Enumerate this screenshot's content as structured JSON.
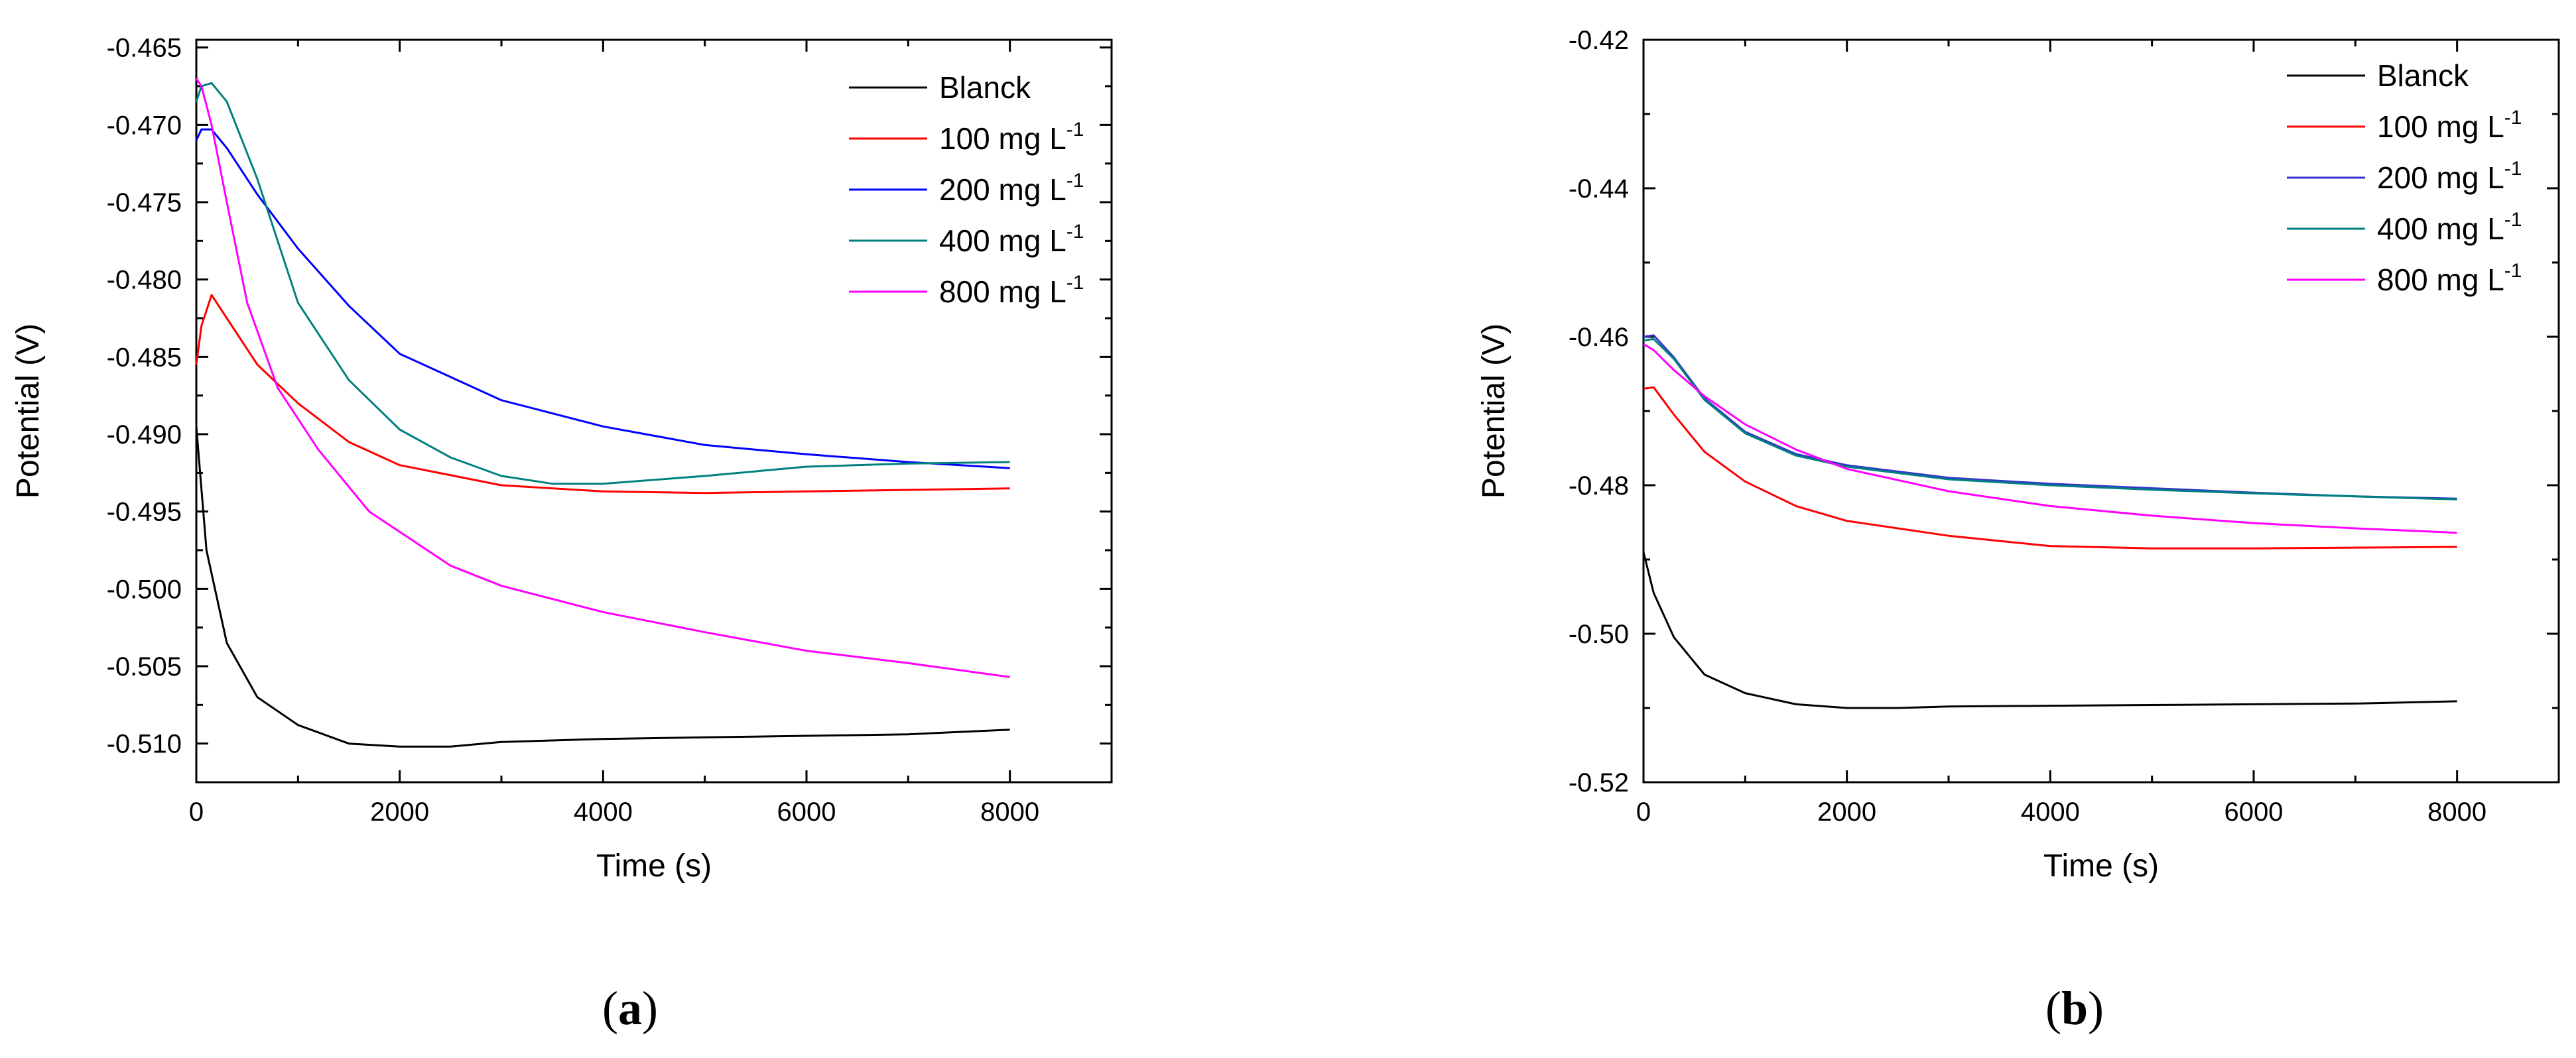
{
  "figure": {
    "panels": [
      {
        "label_open": "(",
        "label_letter": "a",
        "label_close": ")"
      },
      {
        "label_open": "(",
        "label_letter": "b",
        "label_close": ")"
      }
    ]
  },
  "chart_data": [
    {
      "type": "line",
      "xlabel": "Time (s)",
      "ylabel": "Potential (V)",
      "xlim": [
        0,
        9000
      ],
      "ylim": [
        -0.5125,
        -0.4645
      ],
      "xticks": [
        0,
        2000,
        4000,
        6000,
        8000
      ],
      "xtick_labels": [
        "0",
        "2000",
        "4000",
        "6000",
        "8000"
      ],
      "yticks": [
        -0.465,
        -0.47,
        -0.475,
        -0.48,
        -0.485,
        -0.49,
        -0.495,
        -0.5,
        -0.505,
        -0.51
      ],
      "ytick_labels": [
        "-0.465",
        "-0.470",
        "-0.475",
        "-0.480",
        "-0.485",
        "-0.490",
        "-0.495",
        "-0.500",
        "-0.505",
        "-0.510"
      ],
      "grid": false,
      "legend_position": "top-right",
      "series": [
        {
          "name": "Blanck",
          "legend_main": "Blanck",
          "legend_sup": "",
          "color": "#000000",
          "x": [
            0,
            100,
            300,
            600,
            1000,
            1500,
            2000,
            2500,
            3000,
            4000,
            5000,
            6000,
            7000,
            8000
          ],
          "y": [
            -0.4895,
            -0.4975,
            -0.5035,
            -0.507,
            -0.5088,
            -0.51,
            -0.5102,
            -0.5102,
            -0.5099,
            -0.5097,
            -0.5096,
            -0.5095,
            -0.5094,
            -0.5091
          ]
        },
        {
          "name": "100 mg L-1",
          "legend_main": "100 mg L",
          "legend_sup": "-1",
          "color": "#ff0000",
          "x": [
            0,
            50,
            150,
            300,
            600,
            1000,
            1500,
            2000,
            3000,
            4000,
            5000,
            6000,
            7000,
            8000
          ],
          "y": [
            -0.4855,
            -0.483,
            -0.481,
            -0.4825,
            -0.4855,
            -0.488,
            -0.4905,
            -0.492,
            -0.4933,
            -0.4937,
            -0.4938,
            -0.4937,
            -0.4936,
            -0.4935
          ]
        },
        {
          "name": "200 mg L-1",
          "legend_main": "200 mg L",
          "legend_sup": "-1",
          "color": "#0000ff",
          "x": [
            0,
            50,
            150,
            300,
            600,
            1000,
            1500,
            2000,
            3000,
            4000,
            5000,
            6000,
            7000,
            8000
          ],
          "y": [
            -0.471,
            -0.4703,
            -0.4703,
            -0.4715,
            -0.4745,
            -0.478,
            -0.4817,
            -0.4848,
            -0.4878,
            -0.4895,
            -0.4907,
            -0.4913,
            -0.4918,
            -0.4922
          ]
        },
        {
          "name": "400 mg L-1",
          "legend_main": "400 mg L",
          "legend_sup": "-1",
          "color": "#008080",
          "x": [
            0,
            50,
            150,
            300,
            600,
            1000,
            1500,
            2000,
            2500,
            3000,
            3500,
            4000,
            5000,
            6000,
            7000,
            8000
          ],
          "y": [
            -0.4685,
            -0.4675,
            -0.4673,
            -0.4685,
            -0.4735,
            -0.4815,
            -0.4865,
            -0.4897,
            -0.4915,
            -0.4927,
            -0.4932,
            -0.4932,
            -0.4927,
            -0.4921,
            -0.4919,
            -0.4918
          ]
        },
        {
          "name": "800 mg L-1",
          "legend_main": "800 mg L",
          "legend_sup": "-1",
          "color": "#ff00ff",
          "x": [
            0,
            50,
            150,
            300,
            500,
            800,
            1200,
            1700,
            2500,
            3000,
            4000,
            5000,
            6000,
            7000,
            8000
          ],
          "y": [
            -0.467,
            -0.4675,
            -0.47,
            -0.475,
            -0.4815,
            -0.487,
            -0.491,
            -0.495,
            -0.4985,
            -0.4998,
            -0.5015,
            -0.5028,
            -0.504,
            -0.5048,
            -0.5057
          ]
        }
      ]
    },
    {
      "type": "line",
      "xlabel": "Time (s)",
      "ylabel": "Potential (V)",
      "xlim": [
        0,
        9000
      ],
      "ylim": [
        -0.52,
        -0.42
      ],
      "xticks": [
        0,
        2000,
        4000,
        6000,
        8000
      ],
      "xtick_labels": [
        "0",
        "2000",
        "4000",
        "6000",
        "8000"
      ],
      "yticks": [
        -0.42,
        -0.44,
        -0.46,
        -0.48,
        -0.5,
        -0.52
      ],
      "ytick_labels": [
        "-0.42",
        "-0.44",
        "-0.46",
        "-0.48",
        "-0.50",
        "-0.52"
      ],
      "grid": false,
      "legend_position": "top-right",
      "series": [
        {
          "name": "Blanck",
          "legend_main": "Blanck",
          "legend_sup": "",
          "color": "#000000",
          "x": [
            0,
            100,
            300,
            600,
            1000,
            1500,
            2000,
            2500,
            3000,
            4000,
            5000,
            6000,
            7000,
            8000
          ],
          "y": [
            -0.489,
            -0.4945,
            -0.5005,
            -0.5055,
            -0.508,
            -0.5095,
            -0.51,
            -0.51,
            -0.5098,
            -0.5097,
            -0.5096,
            -0.5095,
            -0.5094,
            -0.5091
          ]
        },
        {
          "name": "100 mg L-1",
          "legend_main": "100 mg L",
          "legend_sup": "-1",
          "color": "#ff0000",
          "x": [
            0,
            100,
            300,
            600,
            1000,
            1500,
            2000,
            3000,
            4000,
            5000,
            6000,
            7000,
            8000
          ],
          "y": [
            -0.467,
            -0.4668,
            -0.4705,
            -0.4755,
            -0.4795,
            -0.4828,
            -0.4848,
            -0.4868,
            -0.4882,
            -0.4885,
            -0.4885,
            -0.4884,
            -0.4883
          ]
        },
        {
          "name": "200 mg L-1",
          "legend_main": "200 mg L",
          "legend_sup": "-1",
          "color": "#3333cc",
          "x": [
            0,
            100,
            300,
            600,
            1000,
            1500,
            2000,
            3000,
            4000,
            5000,
            6000,
            7000,
            8000
          ],
          "y": [
            -0.46,
            -0.4598,
            -0.4628,
            -0.4683,
            -0.4728,
            -0.4758,
            -0.4773,
            -0.479,
            -0.4798,
            -0.4804,
            -0.481,
            -0.4815,
            -0.4818
          ]
        },
        {
          "name": "400 mg L-1",
          "legend_main": "400 mg L",
          "legend_sup": "-1",
          "color": "#008080",
          "x": [
            0,
            100,
            300,
            600,
            1000,
            1500,
            2000,
            3000,
            4000,
            5000,
            6000,
            7000,
            8000
          ],
          "y": [
            -0.4605,
            -0.4603,
            -0.463,
            -0.4685,
            -0.473,
            -0.476,
            -0.4775,
            -0.4792,
            -0.48,
            -0.4806,
            -0.4811,
            -0.4815,
            -0.4819
          ]
        },
        {
          "name": "800 mg L-1",
          "legend_main": "800 mg L",
          "legend_sup": "-1",
          "color": "#ff00ff",
          "x": [
            0,
            100,
            300,
            600,
            1000,
            1500,
            2000,
            3000,
            4000,
            5000,
            6000,
            7000,
            8000
          ],
          "y": [
            -0.461,
            -0.4618,
            -0.4645,
            -0.468,
            -0.4718,
            -0.4752,
            -0.4778,
            -0.4808,
            -0.4828,
            -0.4841,
            -0.4851,
            -0.4858,
            -0.4864
          ]
        }
      ]
    }
  ]
}
